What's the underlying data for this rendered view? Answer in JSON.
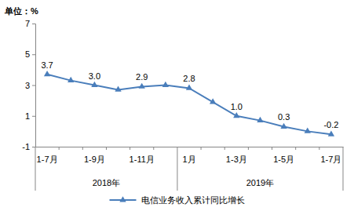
{
  "chart_data": {
    "type": "line",
    "ylabel": "单位：%",
    "categories": [
      "1-7月",
      null,
      "1-9月",
      null,
      "1-11月",
      null,
      "1月",
      null,
      "1-3月",
      null,
      "1-5月",
      null,
      "1-7月"
    ],
    "x_groups": [
      {
        "label": "2018年",
        "start": 0,
        "end": 5
      },
      {
        "label": "2019年",
        "start": 6,
        "end": 12
      }
    ],
    "series": [
      {
        "name": "电信业务收入累计同比增长",
        "color": "#4a7ebb",
        "marker": "triangle",
        "line_style": "solid",
        "values": [
          3.7,
          3.3,
          3.0,
          2.7,
          2.9,
          3.0,
          2.8,
          1.9,
          1.0,
          0.7,
          0.3,
          0.0,
          -0.2
        ],
        "value_labels": [
          "3.7",
          null,
          "3.0",
          null,
          "2.9",
          null,
          "2.8",
          null,
          "1.0",
          null,
          "0.3",
          null,
          "-0.2"
        ]
      }
    ],
    "ylim": [
      -1,
      7
    ],
    "yticks": [
      -1,
      1,
      3,
      5,
      7
    ],
    "grid": false,
    "legend": "bottom",
    "data_labels": true
  }
}
